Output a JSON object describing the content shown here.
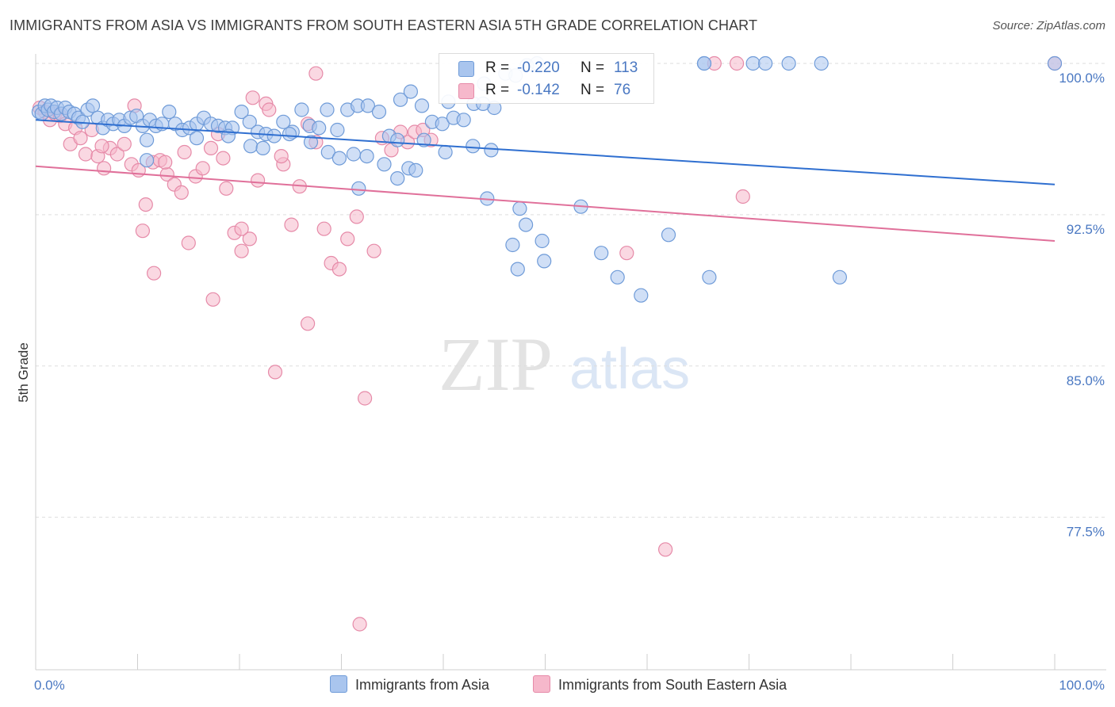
{
  "header": {
    "title": "IMMIGRANTS FROM ASIA VS IMMIGRANTS FROM SOUTH EASTERN ASIA 5TH GRADE CORRELATION CHART",
    "source": "Source: ZipAtlas.com"
  },
  "watermark": {
    "zip": "ZIP",
    "atlas": "atlas"
  },
  "legend_top": {
    "rows": [
      {
        "r_label": "R =",
        "r_value": "-0.220",
        "n_label": "N =",
        "n_value": "113"
      },
      {
        "r_label": "R =",
        "r_value": "-0.142",
        "n_label": "N =",
        "n_value": "76"
      }
    ]
  },
  "legend_bottom": {
    "series1": "Immigrants from Asia",
    "series2": "Immigrants from South Eastern Asia"
  },
  "colors": {
    "series1_fill": "#a9c5ee",
    "series1_stroke": "#6f9bd8",
    "series1_line": "#2f6fd0",
    "series2_fill": "#f6b8cb",
    "series2_stroke": "#e68aa8",
    "series2_line": "#e0709a",
    "axis_text": "#4a78c2",
    "grid": "#dddddd"
  },
  "chart_data": {
    "type": "scatter",
    "title": "IMMIGRANTS FROM ASIA VS IMMIGRANTS FROM SOUTH EASTERN ASIA 5TH GRADE CORRELATION CHART",
    "xlabel": "",
    "ylabel": "5th Grade",
    "xlim": [
      0,
      100
    ],
    "ylim": [
      71.0,
      101.2
    ],
    "x_tick_labels": [
      "0.0%",
      "100.0%"
    ],
    "y_ticks": [
      77.5,
      85.0,
      92.5,
      100.0
    ],
    "y_tick_labels": [
      "77.5%",
      "85.0%",
      "92.5%",
      "100.0%"
    ],
    "grid": true,
    "legend_position": "bottom",
    "series": [
      {
        "name": "Immigrants from Asia",
        "trend": {
          "x": [
            0,
            100
          ],
          "y": [
            97.2,
            94.0
          ]
        },
        "points": [
          [
            0.3,
            97.6
          ],
          [
            0.6,
            97.5
          ],
          [
            0.9,
            97.9
          ],
          [
            1.2,
            97.7
          ],
          [
            1.5,
            97.9
          ],
          [
            1.8,
            97.6
          ],
          [
            2.1,
            97.8
          ],
          [
            2.5,
            97.5
          ],
          [
            2.9,
            97.8
          ],
          [
            3.3,
            97.6
          ],
          [
            3.8,
            97.5
          ],
          [
            4.2,
            97.3
          ],
          [
            4.6,
            97.1
          ],
          [
            5.1,
            97.7
          ],
          [
            5.6,
            97.9
          ],
          [
            6.1,
            97.3
          ],
          [
            6.6,
            96.8
          ],
          [
            7.1,
            97.2
          ],
          [
            7.6,
            97.0
          ],
          [
            8.2,
            97.2
          ],
          [
            8.7,
            96.9
          ],
          [
            9.3,
            97.3
          ],
          [
            9.9,
            97.4
          ],
          [
            10.5,
            96.9
          ],
          [
            11.2,
            97.2
          ],
          [
            11.8,
            96.9
          ],
          [
            12.4,
            97.0
          ],
          [
            13.1,
            97.6
          ],
          [
            13.7,
            97.0
          ],
          [
            14.4,
            96.7
          ],
          [
            15.1,
            96.8
          ],
          [
            15.8,
            97.0
          ],
          [
            16.5,
            97.3
          ],
          [
            17.2,
            97.0
          ],
          [
            17.9,
            96.9
          ],
          [
            18.6,
            96.8
          ],
          [
            19.3,
            96.8
          ],
          [
            20.2,
            97.6
          ],
          [
            21.0,
            97.1
          ],
          [
            21.8,
            96.6
          ],
          [
            22.6,
            96.5
          ],
          [
            23.4,
            96.4
          ],
          [
            24.3,
            97.1
          ],
          [
            25.2,
            96.6
          ],
          [
            26.1,
            97.7
          ],
          [
            26.9,
            96.9
          ],
          [
            27.8,
            96.8
          ],
          [
            28.6,
            97.7
          ],
          [
            29.6,
            96.7
          ],
          [
            30.6,
            97.7
          ],
          [
            31.6,
            97.9
          ],
          [
            32.6,
            97.9
          ],
          [
            33.7,
            97.6
          ],
          [
            34.7,
            96.4
          ],
          [
            35.8,
            98.2
          ],
          [
            36.8,
            98.6
          ],
          [
            37.9,
            97.9
          ],
          [
            38.9,
            97.1
          ],
          [
            39.9,
            97.0
          ],
          [
            41.0,
            97.3
          ],
          [
            42.0,
            97.2
          ],
          [
            43.0,
            98.0
          ],
          [
            44.0,
            99.0
          ],
          [
            45.0,
            97.8
          ],
          [
            46.1,
            99.5
          ],
          [
            47.1,
            99.4
          ],
          [
            48.2,
            99.9
          ],
          [
            49.2,
            100.0
          ],
          [
            10.9,
            96.2
          ],
          [
            15.8,
            96.3
          ],
          [
            18.9,
            96.4
          ],
          [
            21.1,
            95.9
          ],
          [
            22.3,
            95.8
          ],
          [
            24.9,
            96.5
          ],
          [
            27.0,
            96.1
          ],
          [
            28.7,
            95.6
          ],
          [
            29.8,
            95.3
          ],
          [
            31.2,
            95.5
          ],
          [
            32.5,
            95.4
          ],
          [
            34.2,
            95.0
          ],
          [
            35.5,
            96.2
          ],
          [
            36.6,
            94.8
          ],
          [
            37.3,
            94.7
          ],
          [
            38.1,
            96.2
          ],
          [
            40.2,
            95.6
          ],
          [
            42.9,
            95.9
          ],
          [
            44.7,
            95.7
          ],
          [
            47.5,
            92.8
          ],
          [
            48.1,
            92.0
          ],
          [
            49.7,
            91.2
          ],
          [
            53.5,
            92.9
          ],
          [
            55.5,
            90.6
          ],
          [
            57.1,
            89.4
          ],
          [
            59.4,
            88.5
          ],
          [
            62.1,
            91.5
          ],
          [
            66.1,
            89.4
          ],
          [
            65.6,
            100.0
          ],
          [
            70.4,
            100.0
          ],
          [
            78.9,
            89.4
          ],
          [
            71.6,
            100.0
          ],
          [
            73.9,
            100.0
          ],
          [
            10.9,
            95.2
          ],
          [
            31.7,
            93.8
          ],
          [
            35.5,
            94.3
          ],
          [
            44.3,
            93.3
          ],
          [
            46.8,
            91.0
          ],
          [
            47.3,
            89.8
          ],
          [
            49.9,
            90.2
          ],
          [
            40.5,
            98.1
          ],
          [
            43.9,
            98.0
          ],
          [
            65.6,
            100.0
          ],
          [
            77.1,
            100.0
          ],
          [
            100.0,
            100.0
          ]
        ]
      },
      {
        "name": "Immigrants from South Eastern Asia",
        "trend": {
          "x": [
            0,
            100
          ],
          "y": [
            94.9,
            91.2
          ]
        },
        "points": [
          [
            0.4,
            97.8
          ],
          [
            0.9,
            97.6
          ],
          [
            1.4,
            97.2
          ],
          [
            1.9,
            97.5
          ],
          [
            2.4,
            97.4
          ],
          [
            2.9,
            97.0
          ],
          [
            3.4,
            96.0
          ],
          [
            3.9,
            96.8
          ],
          [
            4.4,
            96.3
          ],
          [
            4.9,
            95.5
          ],
          [
            5.5,
            96.7
          ],
          [
            6.1,
            95.4
          ],
          [
            6.7,
            94.8
          ],
          [
            7.3,
            95.8
          ],
          [
            8.0,
            95.5
          ],
          [
            8.7,
            96.0
          ],
          [
            9.4,
            95.0
          ],
          [
            10.1,
            94.7
          ],
          [
            10.8,
            93.0
          ],
          [
            11.5,
            95.1
          ],
          [
            12.2,
            95.2
          ],
          [
            12.9,
            94.5
          ],
          [
            13.6,
            94.0
          ],
          [
            14.3,
            93.6
          ],
          [
            15.0,
            91.1
          ],
          [
            15.7,
            94.4
          ],
          [
            16.4,
            94.8
          ],
          [
            17.2,
            95.8
          ],
          [
            17.9,
            96.5
          ],
          [
            18.7,
            93.8
          ],
          [
            19.5,
            91.6
          ],
          [
            20.2,
            90.7
          ],
          [
            21.0,
            91.3
          ],
          [
            21.8,
            94.2
          ],
          [
            22.6,
            98.0
          ],
          [
            23.5,
            84.7
          ],
          [
            24.3,
            95.0
          ],
          [
            25.1,
            92.0
          ],
          [
            25.9,
            93.9
          ],
          [
            26.7,
            87.1
          ],
          [
            27.5,
            99.5
          ],
          [
            28.3,
            91.8
          ],
          [
            29.0,
            90.1
          ],
          [
            29.8,
            89.8
          ],
          [
            30.6,
            91.3
          ],
          [
            31.5,
            92.4
          ],
          [
            32.3,
            83.4
          ],
          [
            33.2,
            90.7
          ],
          [
            34.0,
            96.3
          ],
          [
            34.9,
            95.7
          ],
          [
            35.8,
            96.6
          ],
          [
            36.5,
            96.1
          ],
          [
            37.2,
            96.6
          ],
          [
            38.0,
            96.7
          ],
          [
            38.8,
            96.2
          ],
          [
            10.5,
            91.7
          ],
          [
            12.7,
            95.1
          ],
          [
            14.6,
            95.6
          ],
          [
            11.6,
            89.6
          ],
          [
            20.2,
            91.8
          ],
          [
            22.9,
            97.7
          ],
          [
            24.1,
            95.4
          ],
          [
            26.7,
            97.0
          ],
          [
            27.5,
            96.1
          ],
          [
            31.8,
            72.2
          ],
          [
            58.0,
            90.6
          ],
          [
            69.4,
            93.4
          ],
          [
            61.8,
            75.9
          ],
          [
            68.8,
            100.0
          ],
          [
            66.6,
            100.0
          ],
          [
            100.0,
            100.0
          ],
          [
            17.4,
            88.3
          ],
          [
            9.7,
            97.9
          ],
          [
            18.4,
            95.3
          ],
          [
            21.3,
            98.3
          ],
          [
            6.5,
            95.9
          ]
        ]
      }
    ]
  }
}
